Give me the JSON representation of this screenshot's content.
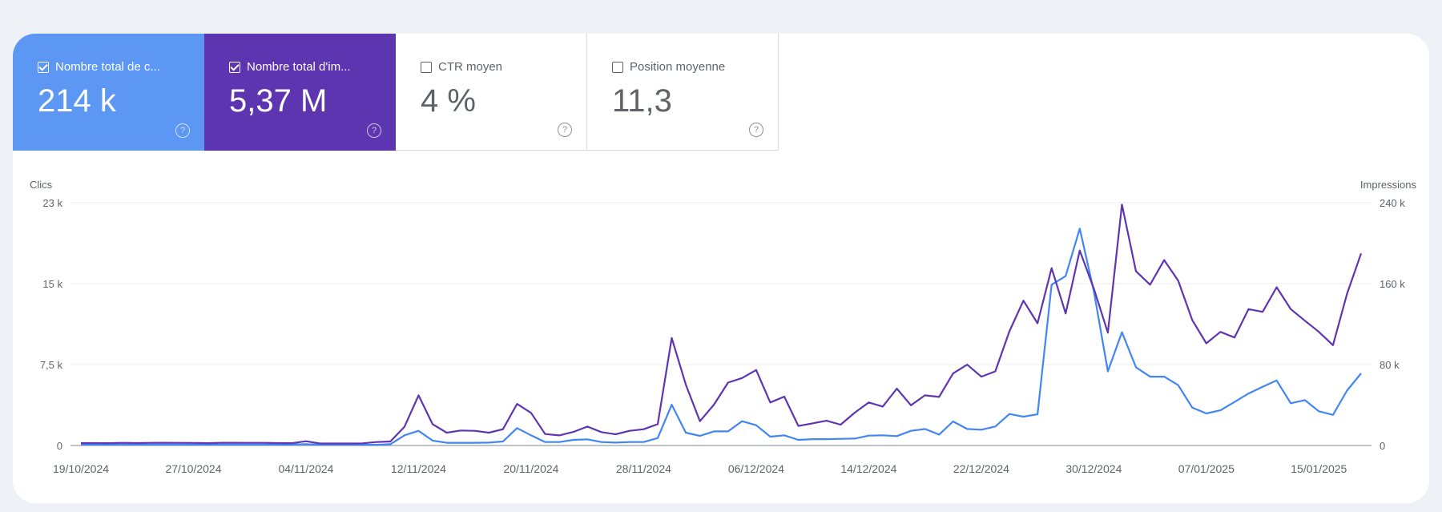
{
  "cards": [
    {
      "label": "Nombre total de c...",
      "value": "214 k",
      "checked": true,
      "color": "#5b97f3"
    },
    {
      "label": "Nombre total d'im...",
      "value": "5,37 M",
      "checked": true,
      "color": "#5e35b1"
    },
    {
      "label": "CTR moyen",
      "value": "4 %",
      "checked": false
    },
    {
      "label": "Position moyenne",
      "value": "11,3",
      "checked": false
    }
  ],
  "help_icon": "question-circle-icon",
  "chart_data": {
    "type": "line",
    "y_left_label": "Clics",
    "y_right_label": "Impressions",
    "y_left_ticks": [
      "0",
      "7,5 k",
      "15 k",
      "23 k"
    ],
    "y_left_range": [
      0,
      22500
    ],
    "y_right_ticks": [
      "0",
      "80 k",
      "160 k",
      "240 k"
    ],
    "y_right_range": [
      0,
      240000
    ],
    "x_start": "19/10/2024",
    "x_end": "18/01/2025",
    "x_ticks": [
      "19/10/2024",
      "27/10/2024",
      "04/11/2024",
      "12/11/2024",
      "20/11/2024",
      "28/11/2024",
      "06/12/2024",
      "14/12/2024",
      "22/12/2024",
      "30/12/2024",
      "07/01/2025",
      "15/01/2025"
    ],
    "grid": true,
    "series": [
      {
        "axis": "left",
        "color": "#4285f4",
        "values": [
          80,
          80,
          80,
          90,
          80,
          90,
          90,
          90,
          80,
          80,
          90,
          90,
          90,
          90,
          80,
          80,
          120,
          70,
          70,
          70,
          70,
          70,
          120,
          940,
          1360,
          450,
          250,
          250,
          250,
          270,
          370,
          1610,
          940,
          320,
          320,
          520,
          570,
          320,
          270,
          320,
          320,
          690,
          3780,
          1190,
          890,
          1310,
          1310,
          2250,
          1880,
          820,
          940,
          520,
          590,
          590,
          620,
          640,
          910,
          940,
          870,
          1360,
          1530,
          1010,
          2230,
          1530,
          1460,
          1760,
          2920,
          2670,
          2890,
          14900,
          15700,
          20100,
          14300,
          6870,
          10500,
          7250,
          6380,
          6380,
          5590,
          3510,
          2970,
          3260,
          4030,
          4820,
          5440,
          6030,
          3910,
          4200,
          3170,
          2840,
          5090,
          6680
        ]
      },
      {
        "axis": "right",
        "color": "#5e35b1",
        "values": [
          2400,
          2400,
          2300,
          2600,
          2400,
          2600,
          2700,
          2600,
          2500,
          2300,
          2700,
          2700,
          2600,
          2600,
          2400,
          2300,
          4200,
          2000,
          2000,
          2000,
          2100,
          3400,
          4000,
          18500,
          49600,
          21100,
          12700,
          14800,
          14500,
          12700,
          16100,
          41100,
          32200,
          11300,
          10000,
          13400,
          18700,
          13200,
          11100,
          14500,
          16100,
          21100,
          106300,
          60100,
          24000,
          40400,
          62200,
          66700,
          74600,
          42500,
          48300,
          19300,
          21900,
          24500,
          20600,
          32400,
          42500,
          38500,
          56200,
          39800,
          49600,
          48000,
          71200,
          79900,
          68000,
          73300,
          112900,
          143200,
          120800,
          175400,
          130500,
          192800,
          155100,
          111500,
          238200,
          172200,
          159000,
          183300,
          163000,
          123900,
          101000,
          112300,
          106800,
          134800,
          132100,
          156400,
          134800,
          123400,
          112300,
          99200,
          149800,
          189900
        ]
      }
    ]
  }
}
